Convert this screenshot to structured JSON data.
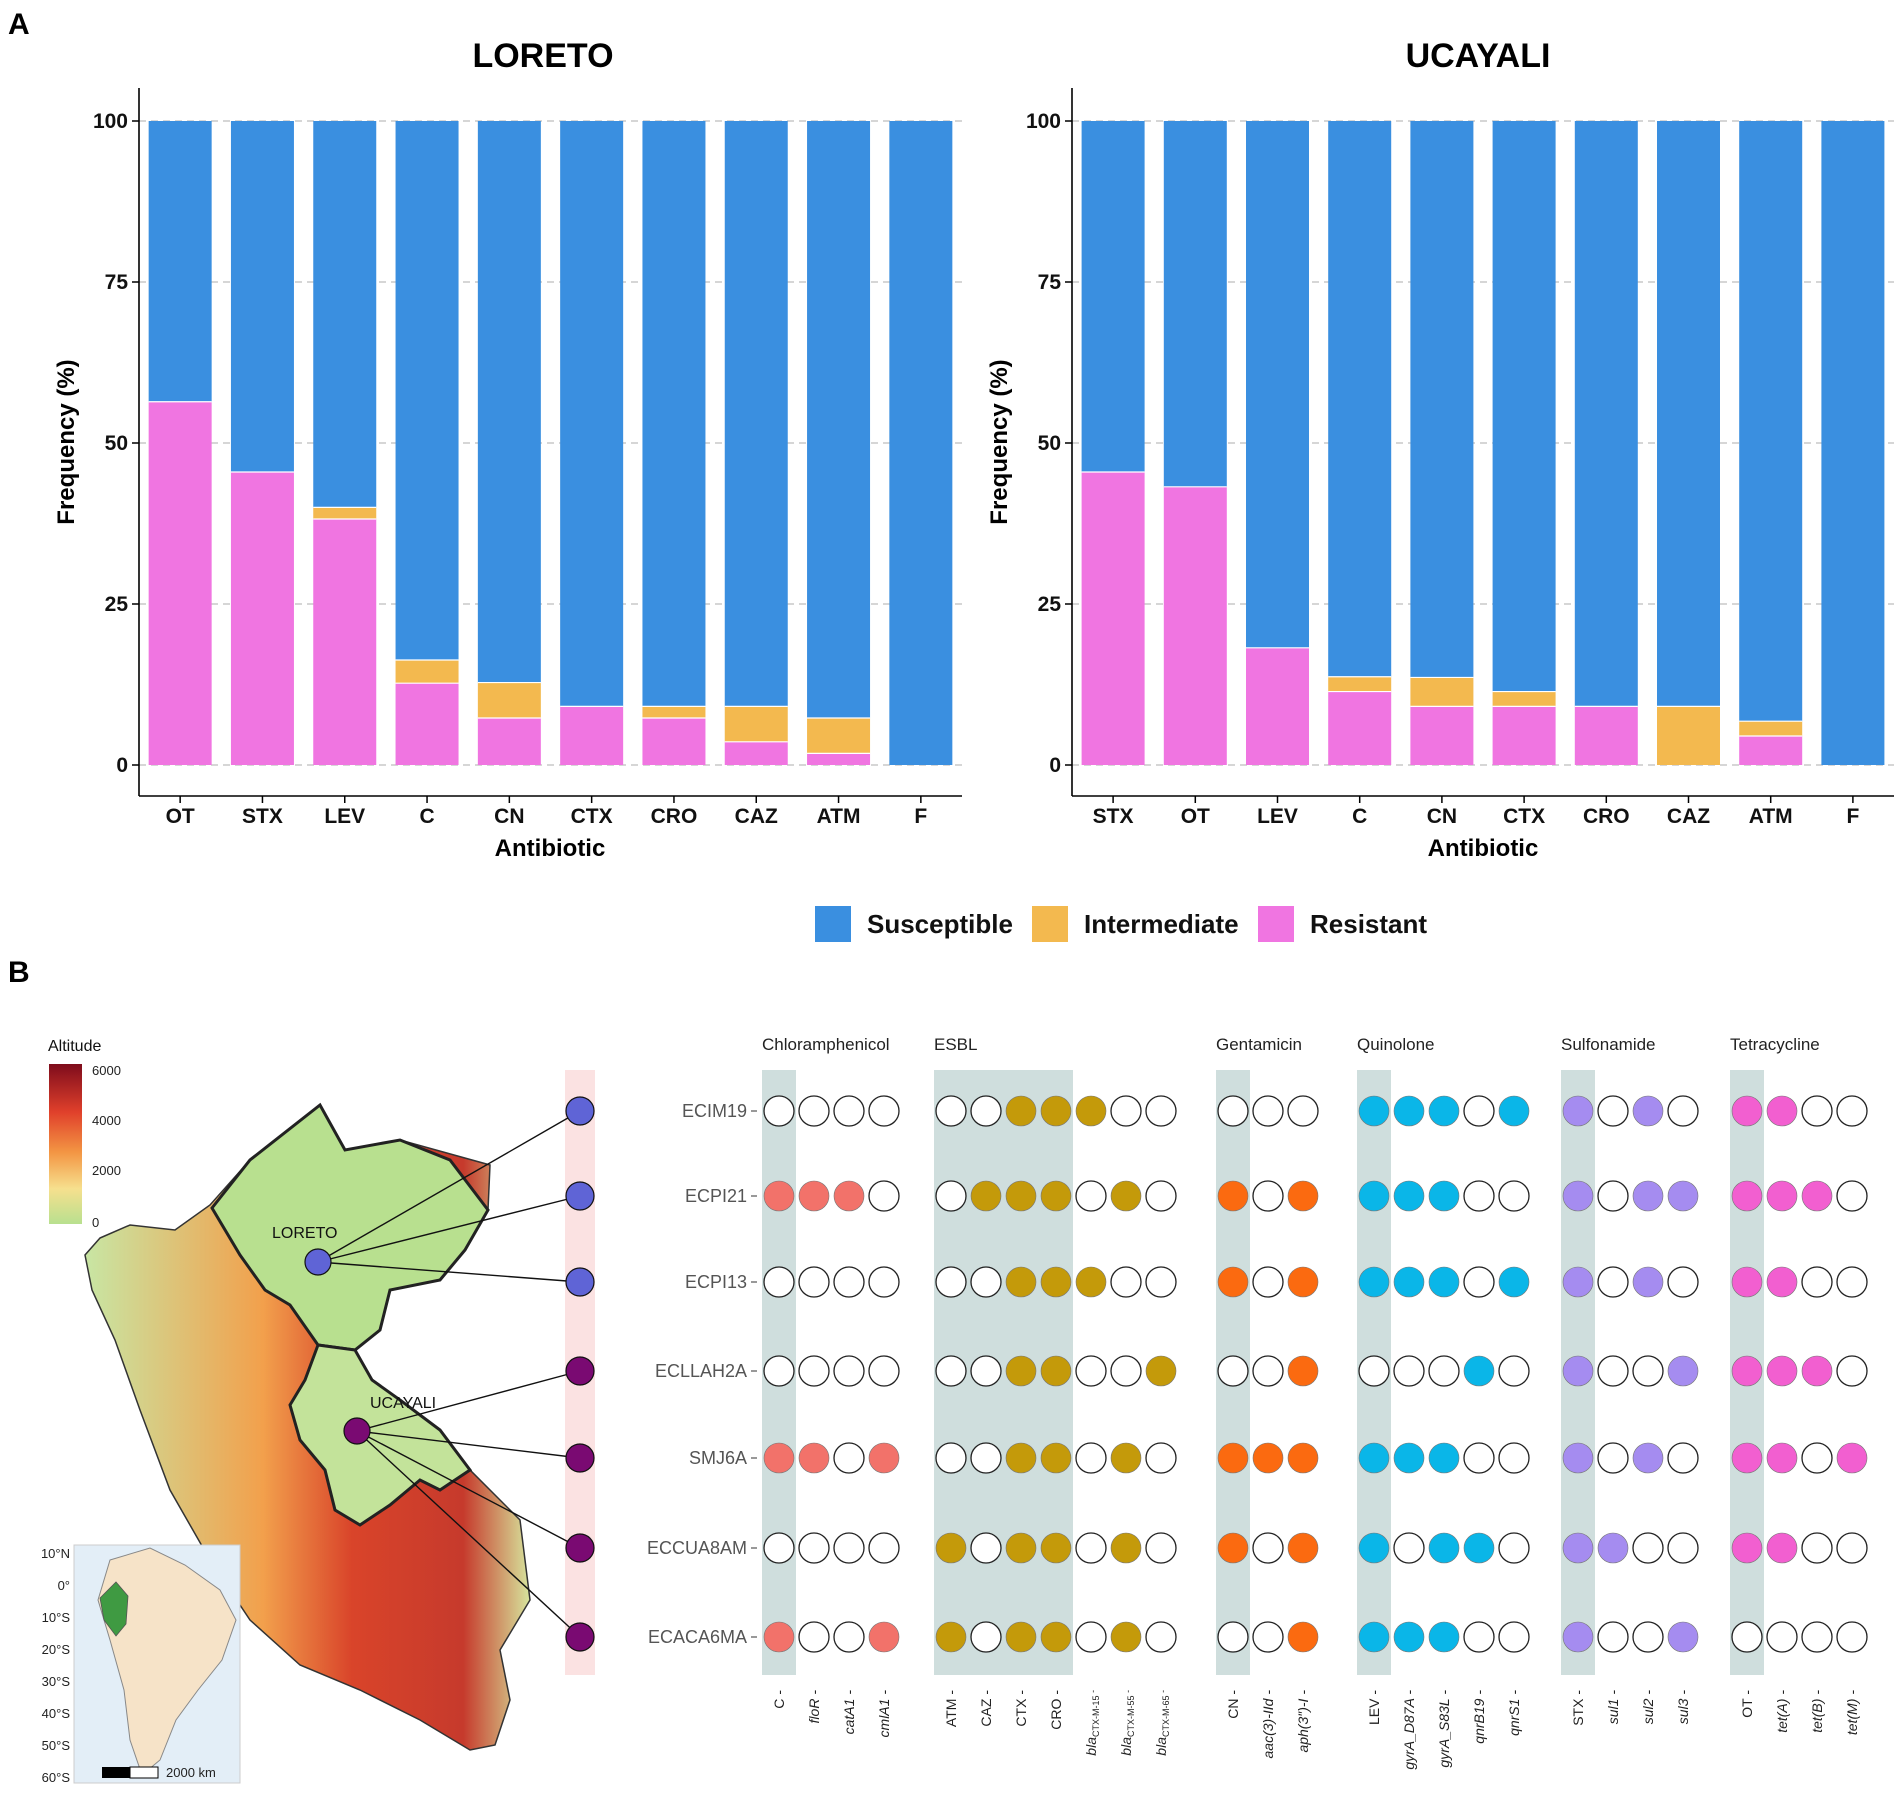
{
  "panel_labels": [
    "A",
    "B"
  ],
  "colors": {
    "susceptible": "#3a8fe0",
    "intermediate": "#f3b94f",
    "resistant": "#f075e1",
    "chloramphenicol": "#f2726a",
    "esbl": "#c49a0a",
    "gentamicin": "#fb6a10",
    "quinolone": "#0ab6e8",
    "sulfonamide": "#a58cf0",
    "tetracycline": "#f25fd0",
    "loreto_site": "#5f64d6",
    "ucayali_site": "#7a0a72",
    "phenotype_bg": "#cfdedd"
  },
  "chart_data": [
    {
      "type": "bar",
      "stacked": true,
      "title": "LORETO",
      "xlabel": "Antibiotic",
      "ylabel": "Frequency (%)",
      "ylim": [
        0,
        100
      ],
      "yticks": [
        "0",
        "25",
        "50",
        "75",
        "100"
      ],
      "categories": [
        "OT",
        "STX",
        "LEV",
        "C",
        "CN",
        "CTX",
        "CRO",
        "CAZ",
        "ATM",
        "F"
      ],
      "series": [
        {
          "name": "Resistant",
          "values": [
            56.4,
            45.5,
            38.2,
            12.7,
            7.3,
            9.1,
            7.3,
            3.6,
            1.8,
            0
          ]
        },
        {
          "name": "Intermediate",
          "values": [
            0,
            0,
            1.8,
            3.6,
            5.5,
            0,
            1.8,
            5.5,
            5.5,
            0
          ]
        },
        {
          "name": "Susceptible",
          "values": [
            43.6,
            54.5,
            60.0,
            83.7,
            87.2,
            90.9,
            90.9,
            90.9,
            92.7,
            100
          ]
        }
      ]
    },
    {
      "type": "bar",
      "stacked": true,
      "title": "UCAYALI",
      "xlabel": "Antibiotic",
      "ylabel": "Frequency (%)",
      "ylim": [
        0,
        100
      ],
      "yticks": [
        "0",
        "25",
        "50",
        "75",
        "100"
      ],
      "categories": [
        "STX",
        "OT",
        "LEV",
        "C",
        "CN",
        "CTX",
        "CRO",
        "CAZ",
        "ATM",
        "F"
      ],
      "series": [
        {
          "name": "Resistant",
          "values": [
            45.5,
            43.2,
            18.2,
            11.4,
            9.1,
            9.1,
            9.1,
            0,
            4.5,
            0
          ]
        },
        {
          "name": "Intermediate",
          "values": [
            0,
            0,
            0,
            2.3,
            4.5,
            2.3,
            0,
            9.1,
            2.3,
            0
          ]
        },
        {
          "name": "Susceptible",
          "values": [
            54.5,
            56.8,
            81.8,
            86.3,
            86.4,
            88.6,
            90.9,
            90.9,
            93.2,
            100
          ]
        }
      ]
    }
  ],
  "legend": [
    "Susceptible",
    "Intermediate",
    "Resistant"
  ],
  "panel_b": {
    "altitude_legend": {
      "title": "Altitude",
      "ticks": [
        "6000",
        "4000",
        "2000",
        "0"
      ]
    },
    "regions": [
      "LORETO",
      "UCAYALI"
    ],
    "inset": {
      "lat_ticks": [
        "10°N",
        "0°",
        "10°S",
        "20°S",
        "30°S",
        "40°S",
        "50°S",
        "60°S"
      ],
      "scale": "2000 km"
    },
    "isolates": [
      "ECIM19",
      "ECPI21",
      "ECPI13",
      "ECLLAH2A",
      "SMJ6A",
      "ECCUA8AM",
      "ECACA6MA"
    ],
    "isolate_regions": [
      "LORETO",
      "LORETO",
      "LORETO",
      "UCAYALI",
      "UCAYALI",
      "UCAYALI",
      "UCAYALI"
    ],
    "groups": [
      {
        "name": "Chloramphenicol",
        "key": "chloramphenicol",
        "columns": [
          {
            "label": "C",
            "phenotype": true
          },
          {
            "label": "floR"
          },
          {
            "label": "catA1"
          },
          {
            "label": "cmlA1"
          }
        ],
        "matrix": [
          [
            0,
            0,
            0,
            0
          ],
          [
            1,
            1,
            1,
            0
          ],
          [
            0,
            0,
            0,
            0
          ],
          [
            0,
            0,
            0,
            0
          ],
          [
            1,
            1,
            0,
            1
          ],
          [
            0,
            0,
            0,
            0
          ],
          [
            1,
            0,
            0,
            1
          ]
        ]
      },
      {
        "name": "ESBL",
        "key": "esbl",
        "columns": [
          {
            "label": "ATM",
            "phenotype": true
          },
          {
            "label": "CAZ",
            "phenotype": true
          },
          {
            "label": "CTX",
            "phenotype": true
          },
          {
            "label": "CRO",
            "phenotype": true
          },
          {
            "label": "bla",
            "sub": "CTX-M-15"
          },
          {
            "label": "bla",
            "sub": "CTX-M-55"
          },
          {
            "label": "bla",
            "sub": "CTX-M-65"
          }
        ],
        "matrix": [
          [
            0,
            0,
            1,
            1,
            1,
            0,
            0
          ],
          [
            0,
            1,
            1,
            1,
            0,
            1,
            0
          ],
          [
            0,
            0,
            1,
            1,
            1,
            0,
            0
          ],
          [
            0,
            0,
            1,
            1,
            0,
            0,
            1
          ],
          [
            0,
            0,
            1,
            1,
            0,
            1,
            0
          ],
          [
            1,
            0,
            1,
            1,
            0,
            1,
            0
          ],
          [
            1,
            0,
            1,
            1,
            0,
            1,
            0
          ]
        ]
      },
      {
        "name": "Gentamicin",
        "key": "gentamicin",
        "columns": [
          {
            "label": "CN",
            "phenotype": true
          },
          {
            "label": "aac(3)-IId"
          },
          {
            "label": "aph(3″)-I"
          }
        ],
        "matrix": [
          [
            0,
            0,
            0
          ],
          [
            1,
            0,
            1
          ],
          [
            1,
            0,
            1
          ],
          [
            0,
            0,
            1
          ],
          [
            1,
            1,
            1
          ],
          [
            1,
            0,
            1
          ],
          [
            0,
            0,
            1
          ]
        ]
      },
      {
        "name": "Quinolone",
        "key": "quinolone",
        "columns": [
          {
            "label": "LEV",
            "phenotype": true
          },
          {
            "label": "gyrA_D87A"
          },
          {
            "label": "gyrA_S83L"
          },
          {
            "label": "qnrB19"
          },
          {
            "label": "qnrS1"
          }
        ],
        "matrix": [
          [
            1,
            1,
            1,
            0,
            1
          ],
          [
            1,
            1,
            1,
            0,
            0
          ],
          [
            1,
            1,
            1,
            0,
            1
          ],
          [
            0,
            0,
            0,
            1,
            0
          ],
          [
            1,
            1,
            1,
            0,
            0
          ],
          [
            1,
            0,
            1,
            1,
            0
          ],
          [
            1,
            1,
            1,
            0,
            0
          ]
        ]
      },
      {
        "name": "Sulfonamide",
        "key": "sulfonamide",
        "columns": [
          {
            "label": "STX",
            "phenotype": true
          },
          {
            "label": "sul1"
          },
          {
            "label": "sul2"
          },
          {
            "label": "sul3"
          }
        ],
        "matrix": [
          [
            1,
            0,
            1,
            0
          ],
          [
            1,
            0,
            1,
            1
          ],
          [
            1,
            0,
            1,
            0
          ],
          [
            1,
            0,
            0,
            1
          ],
          [
            1,
            0,
            1,
            0
          ],
          [
            1,
            1,
            0,
            0
          ],
          [
            1,
            0,
            0,
            1
          ]
        ]
      },
      {
        "name": "Tetracycline",
        "key": "tetracycline",
        "columns": [
          {
            "label": "OT",
            "phenotype": true
          },
          {
            "label": "tet(A)"
          },
          {
            "label": "tet(B)"
          },
          {
            "label": "tet(M)"
          }
        ],
        "matrix": [
          [
            1,
            1,
            0,
            0
          ],
          [
            1,
            1,
            1,
            0
          ],
          [
            1,
            1,
            0,
            0
          ],
          [
            1,
            1,
            1,
            0
          ],
          [
            1,
            1,
            0,
            1
          ],
          [
            1,
            1,
            0,
            0
          ],
          [
            0,
            0,
            0,
            0
          ]
        ]
      }
    ]
  }
}
